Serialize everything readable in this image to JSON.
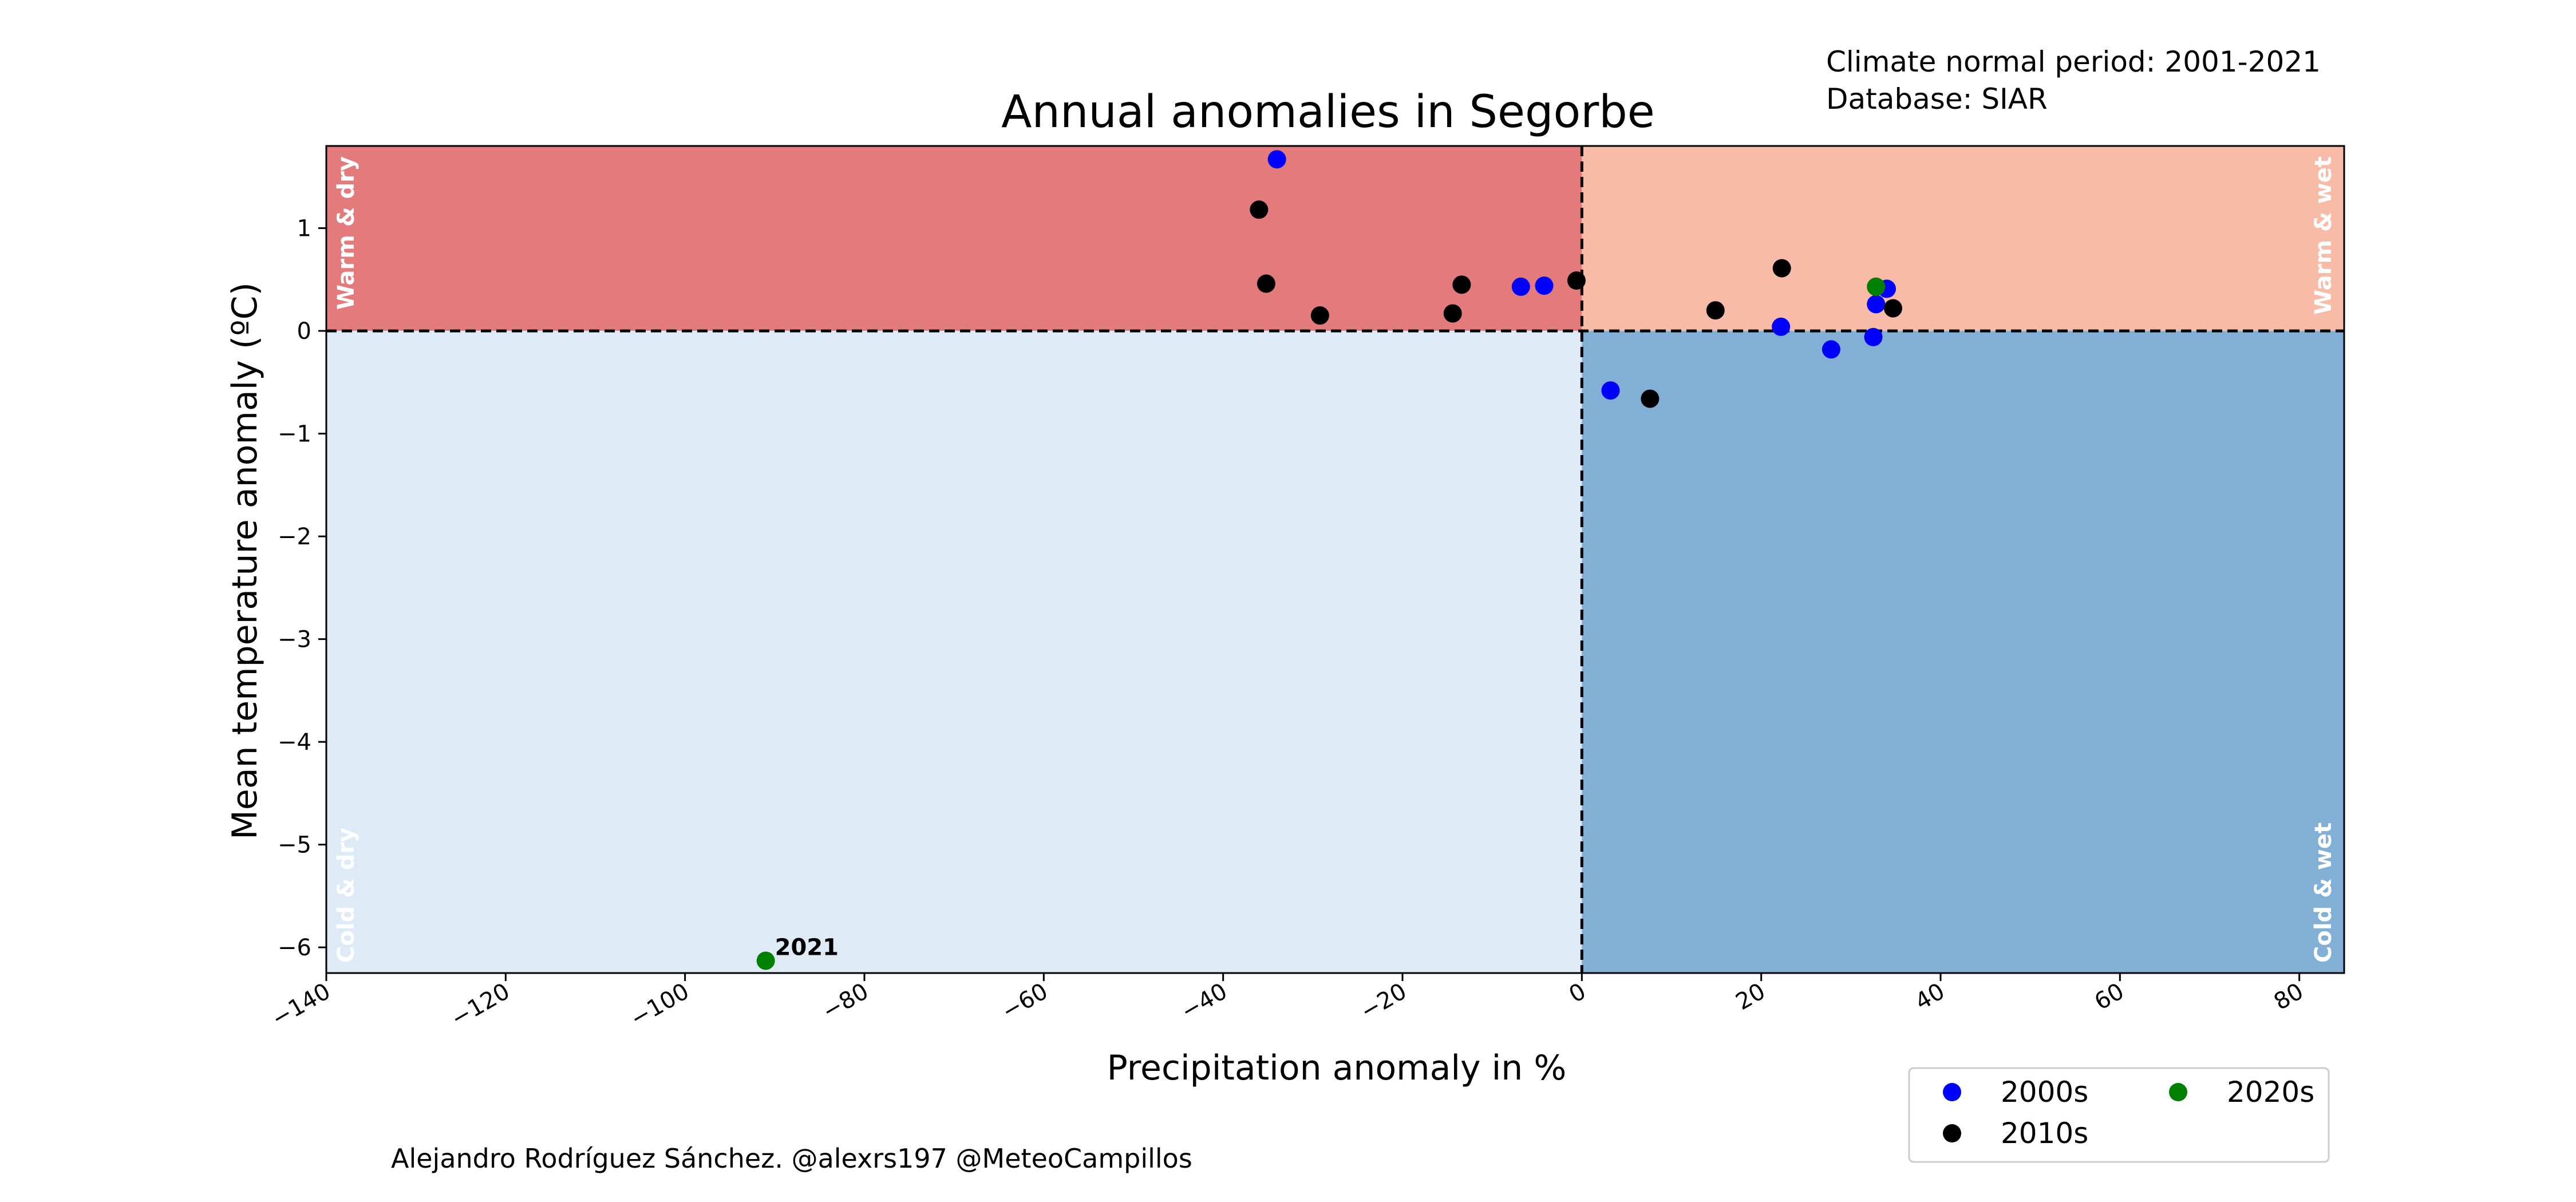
{
  "chart_data": {
    "type": "scatter",
    "title": "Annual anomalies in Segorbe",
    "xlabel": "Precipitation anomaly in %",
    "ylabel": "Mean temperature anomaly (ºC)",
    "xlim": [
      -140,
      85
    ],
    "ylim": [
      -6.25,
      1.8
    ],
    "xticks": [
      -140,
      -120,
      -100,
      -80,
      -60,
      -40,
      -20,
      0,
      20,
      40,
      60,
      80
    ],
    "yticks": [
      -6,
      -5,
      -4,
      -3,
      -2,
      -1,
      0,
      1
    ],
    "grid": false,
    "legend_position": "below-right",
    "quadrants": [
      {
        "label": "Warm & dry",
        "color": "#e37a7c"
      },
      {
        "label": "Warm & wet",
        "color": "#f7bba8"
      },
      {
        "label": "Cold & dry",
        "color": "#deeaf6"
      },
      {
        "label": "Cold & wet",
        "color": "#82afd5"
      }
    ],
    "series": [
      {
        "name": "2000s",
        "color": "#0000ff",
        "points": [
          [
            -34,
            1.67
          ],
          [
            -6.8,
            0.43
          ],
          [
            -4.2,
            0.44
          ],
          [
            22.2,
            0.04
          ],
          [
            32.5,
            -0.06
          ],
          [
            32.8,
            0.26
          ],
          [
            34.0,
            0.41
          ],
          [
            27.8,
            -0.18
          ],
          [
            3.2,
            -0.58
          ]
        ]
      },
      {
        "name": "2010s",
        "color": "#000000",
        "points": [
          [
            -36,
            1.18
          ],
          [
            -35.2,
            0.46
          ],
          [
            -29.2,
            0.15
          ],
          [
            -14.4,
            0.17
          ],
          [
            -13.4,
            0.45
          ],
          [
            -0.6,
            0.49
          ],
          [
            14.9,
            0.2
          ],
          [
            22.3,
            0.61
          ],
          [
            34.7,
            0.22
          ],
          [
            7.6,
            -0.66
          ]
        ]
      },
      {
        "name": "2020s",
        "color": "#008000",
        "points": [
          [
            32.8,
            0.43
          ],
          [
            -91,
            -6.13
          ]
        ]
      }
    ],
    "annotations": [
      {
        "text": "2021",
        "x": -91,
        "y": -6.13
      }
    ]
  },
  "info": {
    "line1": "Climate normal period: 2001-2021",
    "line2": "Database: SIAR"
  },
  "credit": "Alejandro Rodríguez Sánchez. @alexrs197 @MeteoCampillos"
}
